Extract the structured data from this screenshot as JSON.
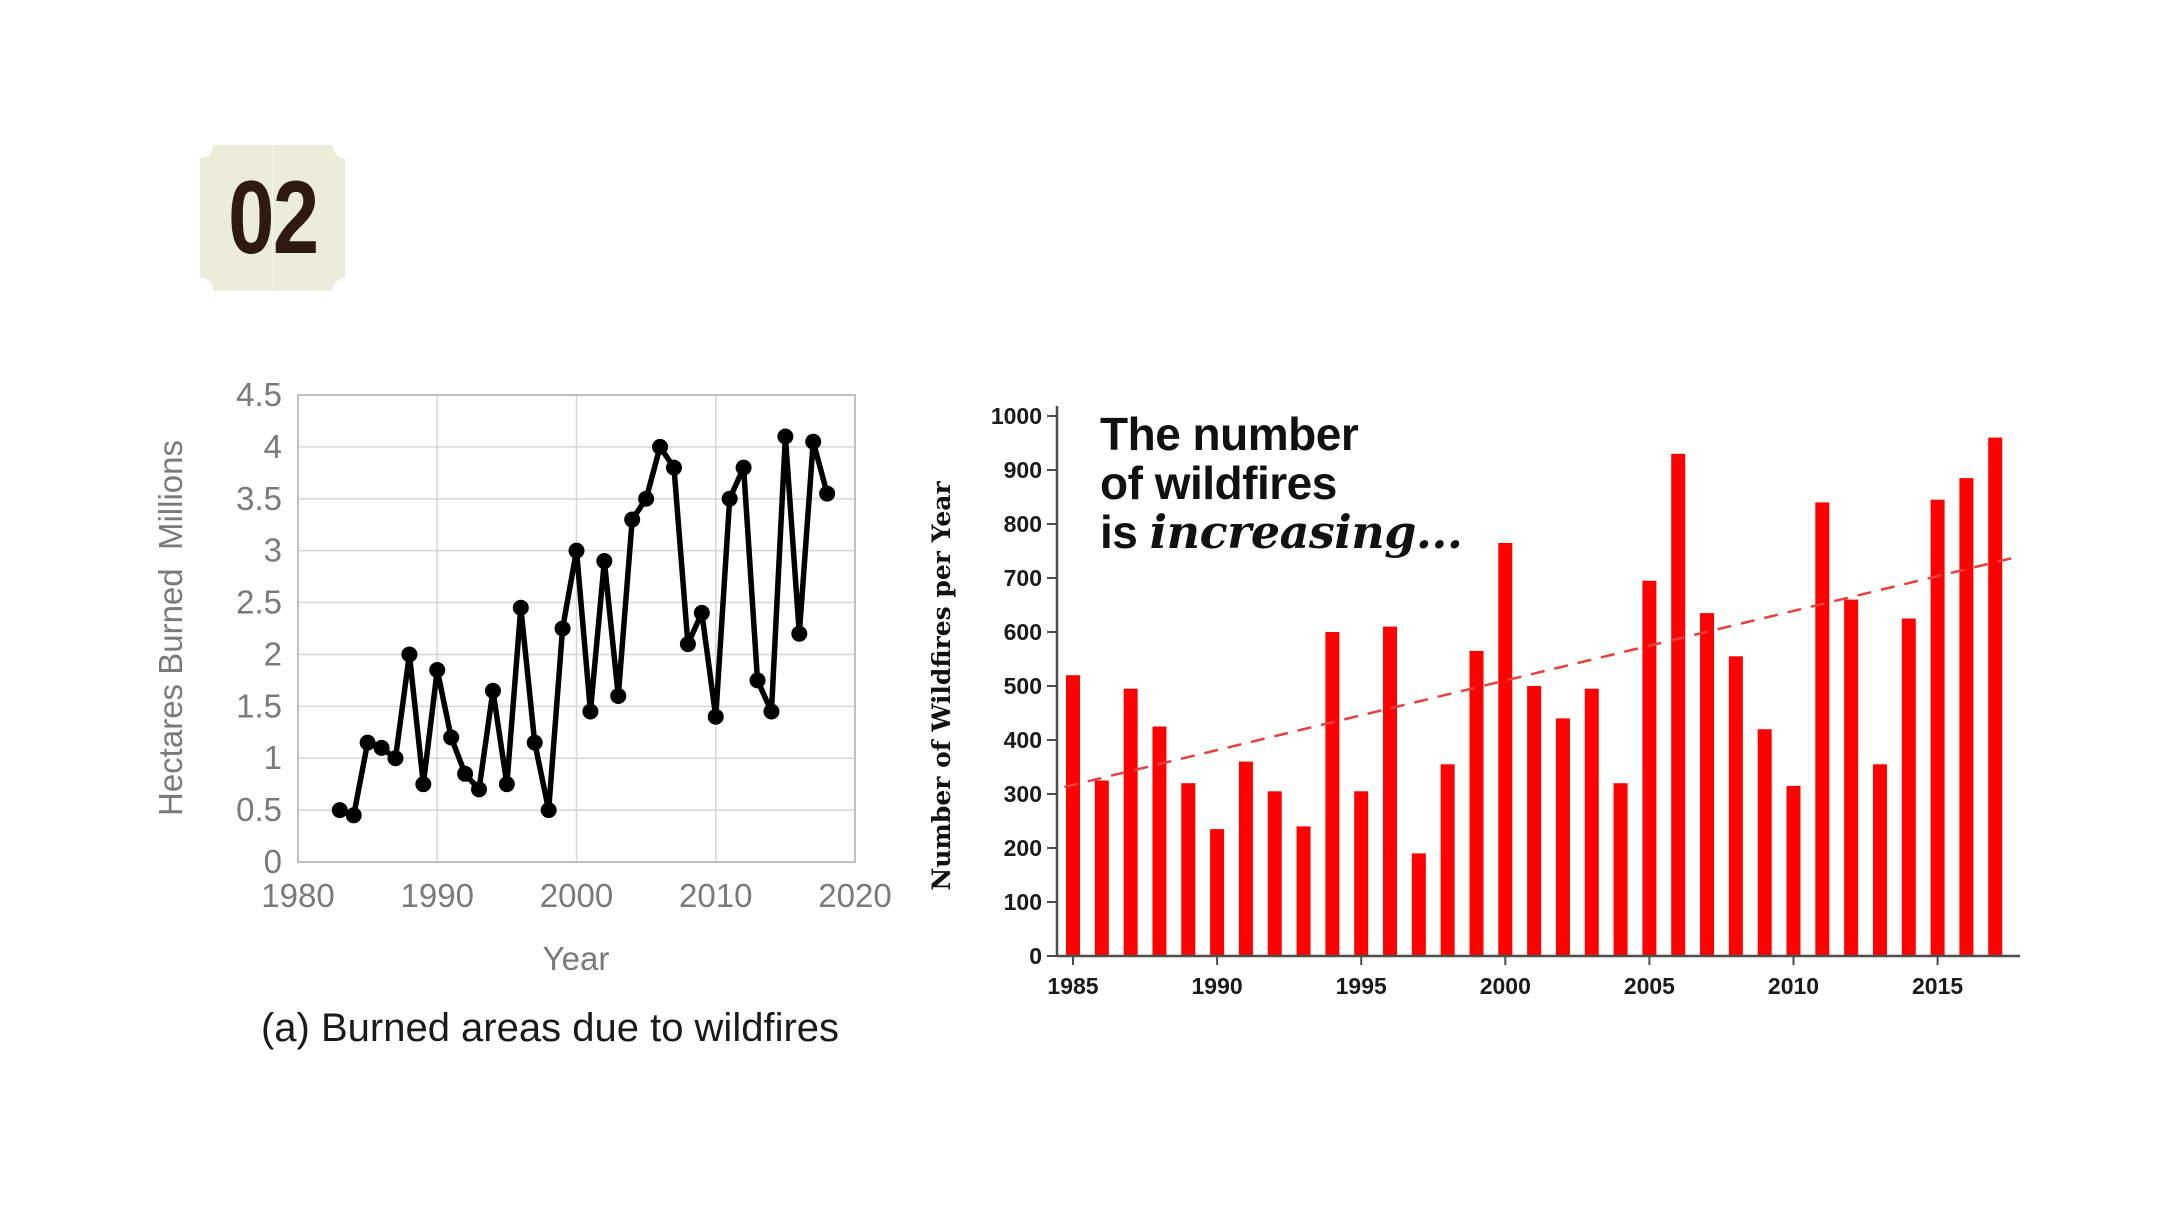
{
  "badge": {
    "number": "02"
  },
  "left_chart": {
    "caption": "(a) Burned areas due to wildfires",
    "ylabel": "Hectares Burned  Millions",
    "xlabel": "Year"
  },
  "right_chart": {
    "headline_line1": "The number",
    "headline_line2": "of wildfires",
    "headline_line3_plain": "is ",
    "headline_line3_italic": "increasing...",
    "ylabel": "Number of Wildfires per Year"
  },
  "colors": {
    "badge_background": "#ebecd9",
    "badge_text": "#2e1a11",
    "line_series": "#000000",
    "bar_red": "#fe0202",
    "trendline_red": "#e8403c",
    "grid_gray": "#d6d6d6",
    "axis_label_gray": "#7a7a7a"
  },
  "chart_data": [
    {
      "type": "line",
      "title": "",
      "xlabel": "Year",
      "ylabel": "Hectares Burned  Millions",
      "x": [
        1983,
        1984,
        1985,
        1986,
        1987,
        1988,
        1989,
        1990,
        1991,
        1992,
        1993,
        1994,
        1995,
        1996,
        1997,
        1998,
        1999,
        2000,
        2001,
        2002,
        2003,
        2004,
        2005,
        2006,
        2007,
        2008,
        2009,
        2010,
        2011,
        2012,
        2013,
        2014,
        2015,
        2016,
        2017,
        2018
      ],
      "values": [
        0.5,
        0.45,
        1.15,
        1.1,
        1.0,
        2.0,
        0.75,
        1.85,
        1.2,
        0.85,
        0.7,
        1.65,
        0.75,
        2.45,
        1.15,
        0.5,
        2.25,
        3.0,
        1.45,
        2.9,
        1.6,
        3.3,
        3.5,
        4.0,
        3.8,
        2.1,
        2.4,
        1.4,
        3.5,
        3.8,
        1.75,
        1.45,
        4.1,
        2.2,
        4.05,
        3.55
      ],
      "xlim": [
        1980,
        2020
      ],
      "ylim": [
        0,
        4.5
      ],
      "xticks": [
        "1980",
        "1990",
        "2000",
        "2010",
        "2020"
      ],
      "yticks": [
        "0",
        "0.5",
        "1",
        "1.5",
        "2",
        "2.5",
        "3",
        "3.5",
        "4",
        "4.5"
      ],
      "grid": true,
      "legend": "none",
      "marker": "circle"
    },
    {
      "type": "bar",
      "title": "The number of wildfires is increasing...",
      "ylabel": "Number of Wildfires per Year",
      "categories": [
        1985,
        1986,
        1987,
        1988,
        1989,
        1990,
        1991,
        1992,
        1993,
        1994,
        1995,
        1996,
        1997,
        1998,
        1999,
        2000,
        2001,
        2002,
        2003,
        2004,
        2005,
        2006,
        2007,
        2008,
        2009,
        2010,
        2011,
        2012,
        2013,
        2014,
        2015,
        2016,
        2017
      ],
      "values": [
        520,
        325,
        495,
        425,
        320,
        235,
        360,
        305,
        240,
        600,
        305,
        610,
        190,
        355,
        565,
        765,
        500,
        440,
        495,
        320,
        695,
        930,
        635,
        555,
        420,
        315,
        840,
        660,
        355,
        625,
        845,
        885,
        960
      ],
      "ylim": [
        0,
        1000
      ],
      "yticks": [
        "0",
        "100",
        "200",
        "300",
        "400",
        "500",
        "600",
        "700",
        "800",
        "900",
        "1000"
      ],
      "xticks": [
        "1985",
        "1990",
        "1995",
        "2000",
        "2005",
        "2010",
        "2015"
      ],
      "grid": false,
      "legend": "none",
      "trendline": {
        "style": "dashed",
        "x_start": 1984.7,
        "y_start": 313,
        "x_end": 2017.6,
        "y_end": 737
      }
    }
  ]
}
